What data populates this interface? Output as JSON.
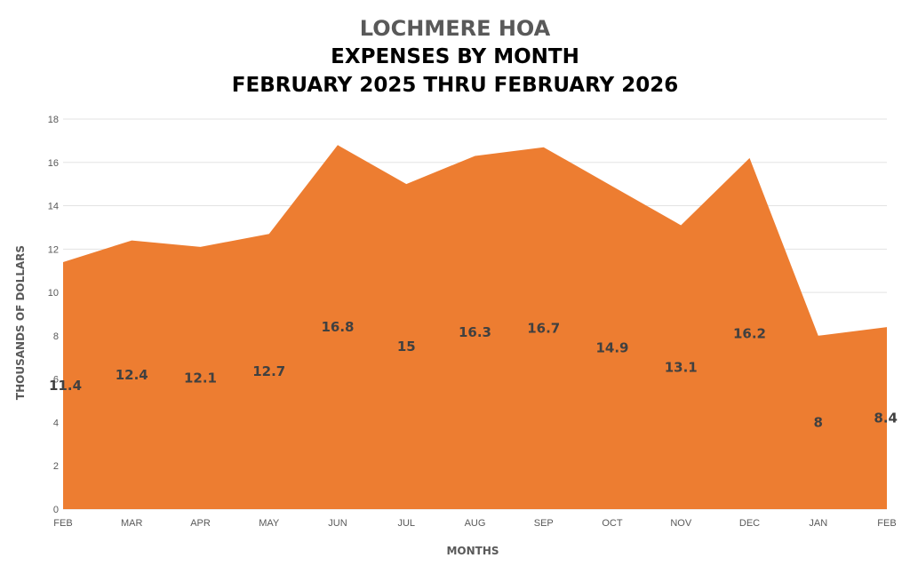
{
  "chart_data": {
    "type": "area",
    "title": "LOCHMERE HOA",
    "subtitle": "EXPENSES BY MONTH",
    "subtitle2": "FEBRUARY 2025 THRU FEBRUARY 2026",
    "xlabel": "MONTHS",
    "ylabel": "THOUSANDS OF DOLLARS",
    "categories": [
      "FEB",
      "MAR",
      "APR",
      "MAY",
      "JUN",
      "JUL",
      "AUG",
      "SEP",
      "OCT",
      "NOV",
      "DEC",
      "JAN",
      "FEB"
    ],
    "values": [
      11.4,
      12.4,
      12.1,
      12.7,
      16.8,
      15,
      16.3,
      16.7,
      14.9,
      13.1,
      16.2,
      8,
      8.4
    ],
    "data_labels": [
      "11.4",
      "12.4",
      "12.1",
      "12.7",
      "16.8",
      "15",
      "16.3",
      "16.7",
      "14.9",
      "13.1",
      "16.2",
      "8",
      "8.4"
    ],
    "yticks": [
      "0",
      "2",
      "4",
      "6",
      "8",
      "10",
      "12",
      "14",
      "16",
      "18"
    ],
    "ylim": [
      0,
      18
    ],
    "grid": true,
    "legend": "none",
    "fill_color": "#ED7D31"
  }
}
